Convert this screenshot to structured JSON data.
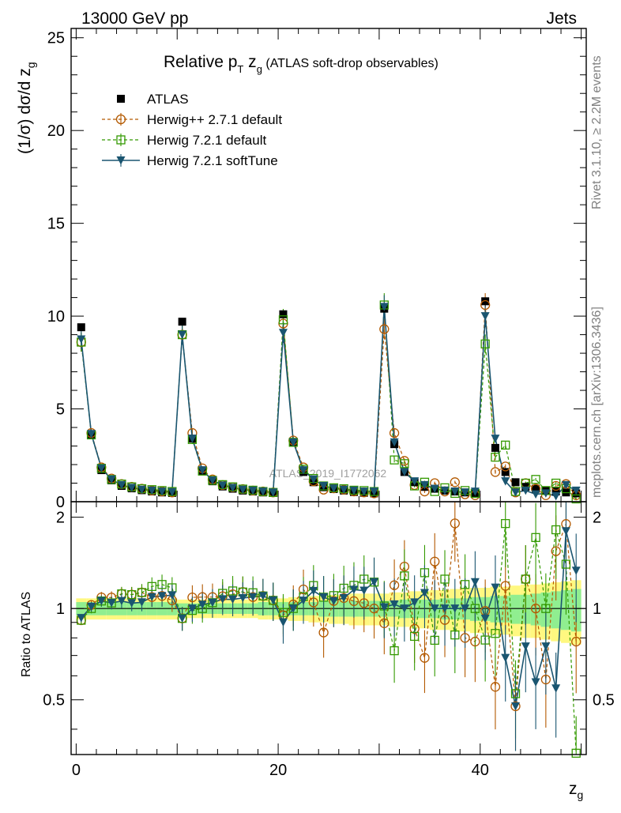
{
  "header": {
    "left": "13000 GeV pp",
    "right": "Jets"
  },
  "side_labels": {
    "rivet": "Rivet 3.1.10, ≥ 2.2M events",
    "mcplots": "mcplots.cern.ch [arXiv:1306.3436]"
  },
  "chart_data": {
    "type": "line",
    "title_main": "Relative p",
    "title_sub_T": "T",
    "title_mid": " z",
    "title_sub_g": "g",
    "title_tail": " (ATLAS soft-drop observables)",
    "watermark": "ATLAS_2019_I1772062",
    "ylabel_main": "(1/σ) dσ/d z",
    "ylabel_sub": "g",
    "xlabel_main": "z",
    "xlabel_sub": "g",
    "ratio_ylabel": "Ratio to ATLAS",
    "xlim": [
      -0.5,
      50.5
    ],
    "ylim": [
      0,
      25.5
    ],
    "ratio_ylim": [
      0.33,
      2.25
    ],
    "x_ticks": [
      "0",
      "20",
      "40"
    ],
    "x_tick_values": [
      0,
      20,
      40
    ],
    "y_ticks": [
      "0",
      "5",
      "10",
      "15",
      "20",
      "25"
    ],
    "y_tick_values": [
      0,
      5,
      10,
      15,
      20,
      25
    ],
    "ratio_ticks": [
      "0.5",
      "1",
      "2"
    ],
    "ratio_tick_values": [
      0.5,
      1,
      2
    ],
    "legend": [
      "ATLAS",
      "Herwig++ 2.7.1 default",
      "Herwig 7.2.1 default",
      "Herwig 7.2.1 softTune"
    ],
    "x": [
      0.5,
      1.5,
      2.5,
      3.5,
      4.5,
      5.5,
      6.5,
      7.5,
      8.5,
      9.5,
      10.5,
      11.5,
      12.5,
      13.5,
      14.5,
      15.5,
      16.5,
      17.5,
      18.5,
      19.5,
      20.5,
      21.5,
      22.5,
      23.5,
      24.5,
      25.5,
      26.5,
      27.5,
      28.5,
      29.5,
      30.5,
      31.5,
      32.5,
      33.5,
      34.5,
      35.5,
      36.5,
      37.5,
      38.5,
      39.5,
      40.5,
      41.5,
      42.5,
      43.5,
      44.5,
      45.5,
      46.5,
      47.5,
      48.5,
      49.5
    ],
    "series": [
      {
        "name": "ATLAS",
        "color": "#000000",
        "values": [
          9.4,
          3.6,
          1.7,
          1.15,
          0.85,
          0.72,
          0.62,
          0.55,
          0.5,
          0.47,
          9.7,
          3.4,
          1.65,
          1.1,
          0.82,
          0.7,
          0.6,
          0.55,
          0.5,
          0.47,
          10.1,
          3.2,
          1.6,
          1.05,
          0.78,
          0.68,
          0.6,
          0.52,
          0.48,
          0.45,
          10.4,
          3.1,
          1.6,
          1.05,
          0.8,
          0.7,
          0.6,
          0.55,
          0.5,
          0.45,
          10.8,
          2.9,
          1.6,
          1.05,
          0.8,
          0.7,
          0.6,
          0.55,
          0.5,
          0.45
        ]
      },
      {
        "name": "Herwig++ 2.7.1 default",
        "color": "#b35900",
        "values": [
          8.6,
          3.7,
          1.85,
          1.25,
          0.95,
          0.8,
          0.7,
          0.6,
          0.55,
          0.5,
          9.0,
          3.7,
          1.8,
          1.2,
          0.9,
          0.78,
          0.68,
          0.6,
          0.55,
          0.5,
          9.6,
          3.3,
          1.85,
          1.1,
          0.65,
          0.72,
          0.65,
          0.55,
          0.5,
          0.45,
          9.3,
          3.7,
          2.2,
          0.9,
          0.55,
          1.0,
          0.55,
          1.05,
          0.4,
          0.35,
          10.6,
          1.6,
          1.9,
          0.5,
          1.0,
          0.7,
          0.35,
          0.85,
          0.95,
          0.35
        ]
      },
      {
        "name": "Herwig 7.2.1 default",
        "color": "#339900",
        "values": [
          8.6,
          3.6,
          1.8,
          1.2,
          0.95,
          0.8,
          0.7,
          0.65,
          0.6,
          0.55,
          9.0,
          3.35,
          1.65,
          1.15,
          0.92,
          0.8,
          0.68,
          0.62,
          0.55,
          0.5,
          9.8,
          3.2,
          1.75,
          1.25,
          0.85,
          0.75,
          0.7,
          0.62,
          0.6,
          0.55,
          10.6,
          2.25,
          2.05,
          0.85,
          1.05,
          0.55,
          0.75,
          0.45,
          0.6,
          0.45,
          8.5,
          2.4,
          3.05,
          0.55,
          1.0,
          1.2,
          0.6,
          1.0,
          0.7,
          0.15
        ]
      },
      {
        "name": "Herwig 7.2.1 softTune",
        "color": "#1a5570",
        "values": [
          8.75,
          3.65,
          1.8,
          1.2,
          0.9,
          0.75,
          0.65,
          0.6,
          0.55,
          0.52,
          9.0,
          3.4,
          1.7,
          1.15,
          0.88,
          0.75,
          0.65,
          0.6,
          0.55,
          0.5,
          9.1,
          3.2,
          1.7,
          1.2,
          0.85,
          0.72,
          0.65,
          0.6,
          0.55,
          0.55,
          10.5,
          3.2,
          1.6,
          1.1,
          0.9,
          0.7,
          0.6,
          0.55,
          0.5,
          0.55,
          10.0,
          3.4,
          1.1,
          0.5,
          0.6,
          0.4,
          0.45,
          0.3,
          0.9,
          0.6
        ]
      }
    ],
    "band_inner": [
      0.05,
      0.05,
      0.05,
      0.05,
      0.05,
      0.05,
      0.05,
      0.05,
      0.05,
      0.05,
      0.04,
      0.04,
      0.04,
      0.04,
      0.04,
      0.04,
      0.04,
      0.04,
      0.05,
      0.05,
      0.05,
      0.05,
      0.05,
      0.05,
      0.06,
      0.06,
      0.06,
      0.06,
      0.06,
      0.06,
      0.06,
      0.06,
      0.07,
      0.07,
      0.07,
      0.07,
      0.08,
      0.08,
      0.08,
      0.09,
      0.09,
      0.1,
      0.1,
      0.11,
      0.11,
      0.12,
      0.13,
      0.14,
      0.15,
      0.16
    ],
    "band_outer": [
      0.08,
      0.08,
      0.08,
      0.08,
      0.08,
      0.08,
      0.08,
      0.08,
      0.08,
      0.08,
      0.07,
      0.07,
      0.07,
      0.07,
      0.07,
      0.07,
      0.07,
      0.07,
      0.08,
      0.08,
      0.08,
      0.09,
      0.09,
      0.1,
      0.1,
      0.11,
      0.11,
      0.12,
      0.12,
      0.12,
      0.12,
      0.13,
      0.13,
      0.14,
      0.14,
      0.15,
      0.15,
      0.16,
      0.16,
      0.17,
      0.17,
      0.18,
      0.18,
      0.19,
      0.2,
      0.2,
      0.21,
      0.22,
      0.23,
      0.24
    ]
  }
}
